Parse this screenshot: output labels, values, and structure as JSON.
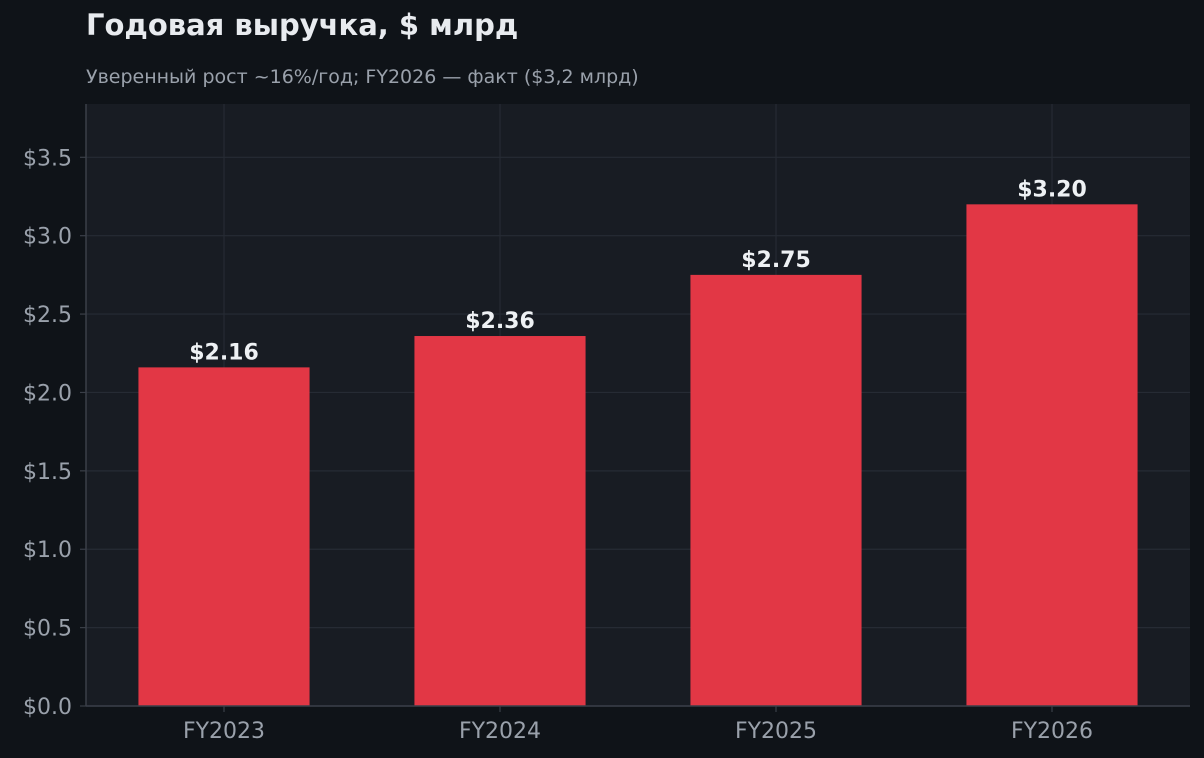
{
  "chart_data": {
    "type": "bar",
    "title": "Годовая выручка, $ млрд",
    "subtitle": "Уверенный рост ~16%/год; FY2026 — факт ($3,2 млрд)",
    "categories": [
      "FY2023",
      "FY2024",
      "FY2025",
      "FY2026"
    ],
    "values": [
      2.16,
      2.36,
      2.75,
      3.2
    ],
    "value_labels": [
      "$2.16",
      "$2.36",
      "$2.75",
      "$3.20"
    ],
    "xlabel": "",
    "ylabel": "",
    "ylim": [
      0,
      3.84
    ],
    "yticks": [
      0,
      0.5,
      1.0,
      1.5,
      2.0,
      2.5,
      3.0,
      3.5
    ],
    "ytick_labels": [
      "$0.0",
      "$0.5",
      "$1.0",
      "$1.5",
      "$2.0",
      "$2.5",
      "$3.0",
      "$3.5"
    ],
    "grid": true,
    "legend": "none",
    "colors": {
      "bar": "#e23745",
      "background": "#0f1318",
      "plot_background": "#181c23",
      "grid": "#262b34",
      "axis": "#3a3f48",
      "tick_text": "#9aa1ab",
      "value_text": "#eef1f4",
      "title_text": "#e8ebef"
    }
  }
}
